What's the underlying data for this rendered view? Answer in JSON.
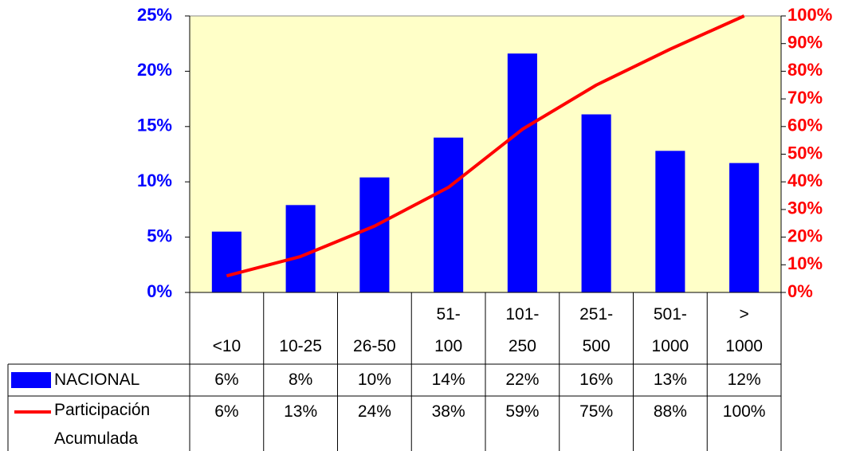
{
  "chart_data": {
    "type": "bar",
    "categories": [
      "<10",
      "10-25",
      "26-50",
      "51-100",
      "101-250",
      "251-500",
      "501-1000",
      "> 1000"
    ],
    "series": [
      {
        "name": "NACIONAL",
        "type": "bar",
        "color": "#0000ff",
        "values": [
          5.5,
          7.9,
          10.4,
          14.0,
          21.6,
          16.1,
          12.8,
          11.7
        ],
        "value_labels": [
          "6%",
          "8%",
          "10%",
          "14%",
          "22%",
          "16%",
          "13%",
          "12%"
        ]
      },
      {
        "name": "Participación Acumulada",
        "type": "line",
        "axis": "y2",
        "color": "#ff0000",
        "values": [
          6,
          13,
          24,
          38,
          59,
          75,
          88,
          100
        ],
        "value_labels": [
          "6%",
          "13%",
          "24%",
          "38%",
          "59%",
          "75%",
          "88%",
          "100%"
        ]
      }
    ],
    "ylim": [
      0,
      25
    ],
    "yticks": [
      {
        "value": 0,
        "label": "0%"
      },
      {
        "value": 5,
        "label": "5%"
      },
      {
        "value": 10,
        "label": "10%"
      },
      {
        "value": 15,
        "label": "15%"
      },
      {
        "value": 20,
        "label": "20%"
      },
      {
        "value": 25,
        "label": "25%"
      }
    ],
    "y2lim": [
      0,
      100
    ],
    "y2ticks": [
      {
        "value": 0,
        "label": "0%"
      },
      {
        "value": 10,
        "label": "10%"
      },
      {
        "value": 20,
        "label": "20%"
      },
      {
        "value": 30,
        "label": "30%"
      },
      {
        "value": 40,
        "label": "40%"
      },
      {
        "value": 50,
        "label": "50%"
      },
      {
        "value": 60,
        "label": "60%"
      },
      {
        "value": 70,
        "label": "70%"
      },
      {
        "value": 80,
        "label": "80%"
      },
      {
        "value": 90,
        "label": "90%"
      },
      {
        "value": 100,
        "label": "100%"
      }
    ],
    "background": "#ffffc8"
  }
}
